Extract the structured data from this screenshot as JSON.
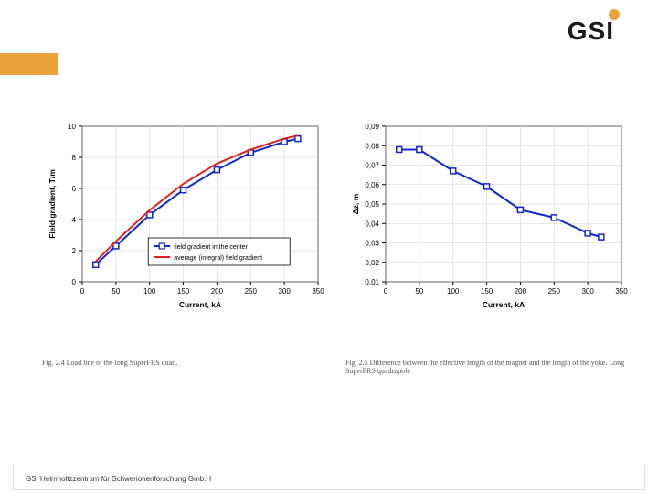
{
  "logo": {
    "text": "GSI",
    "dot_color": "#e8a33d"
  },
  "orange_bar_color": "#e8a33d",
  "footer": "GSI Helmholtzzentrum für Schwerionenforschung Gmb.H",
  "chart_left": {
    "type": "line",
    "xlabel": "Current, kA",
    "ylabel": "Field gradient, T/m",
    "xlim": [
      0,
      350
    ],
    "ylim": [
      0,
      10
    ],
    "xticks": [
      0,
      50,
      100,
      150,
      200,
      250,
      300,
      350
    ],
    "yticks": [
      0,
      2,
      4,
      6,
      8,
      10
    ],
    "background_color": "#ffffff",
    "grid_color": "#cccccc",
    "axis_color": "#000000",
    "series": [
      {
        "name": "field gradient in the center",
        "color": "#1028c8",
        "marker": "square-open",
        "linewidth": 2,
        "data": [
          {
            "x": 20,
            "y": 1.1
          },
          {
            "x": 50,
            "y": 2.3
          },
          {
            "x": 100,
            "y": 4.3
          },
          {
            "x": 150,
            "y": 5.9
          },
          {
            "x": 200,
            "y": 7.2
          },
          {
            "x": 250,
            "y": 8.3
          },
          {
            "x": 300,
            "y": 9.0
          },
          {
            "x": 320,
            "y": 9.2
          }
        ]
      },
      {
        "name": "average (integral) field gradient",
        "color": "#e02020",
        "marker": "none",
        "linewidth": 2,
        "data": [
          {
            "x": 20,
            "y": 1.3
          },
          {
            "x": 50,
            "y": 2.6
          },
          {
            "x": 100,
            "y": 4.6
          },
          {
            "x": 150,
            "y": 6.3
          },
          {
            "x": 200,
            "y": 7.6
          },
          {
            "x": 250,
            "y": 8.5
          },
          {
            "x": 300,
            "y": 9.2
          },
          {
            "x": 320,
            "y": 9.4
          }
        ]
      }
    ],
    "legend": {
      "position": "lower-center",
      "border_color": "#000000",
      "items": [
        {
          "label": "field gradient in the center",
          "color": "#1028c8",
          "marker": "square-open"
        },
        {
          "label": "average (integral) field gradient",
          "color": "#e02020",
          "marker": "none"
        }
      ]
    },
    "caption": "Fig. 2.4 Load line of the long SuperFRS quad."
  },
  "chart_right": {
    "type": "line",
    "xlabel": "Current, kA",
    "ylabel": "Δz, m",
    "xlim": [
      0,
      350
    ],
    "ylim": [
      0.01,
      0.09
    ],
    "xticks": [
      0,
      50,
      100,
      150,
      200,
      250,
      300,
      350
    ],
    "yticks": [
      0.01,
      0.02,
      0.03,
      0.04,
      0.05,
      0.06,
      0.07,
      0.08,
      0.09
    ],
    "ytick_labels": [
      "0,01",
      "0,02",
      "0,03",
      "0,04",
      "0,05",
      "0,06",
      "0,07",
      "0,08",
      "0,09"
    ],
    "background_color": "#ffffff",
    "grid_color": "#cccccc",
    "axis_color": "#000000",
    "series": [
      {
        "name": "dz",
        "color": "#1028c8",
        "marker": "square-open",
        "linewidth": 2,
        "data": [
          {
            "x": 20,
            "y": 0.078
          },
          {
            "x": 50,
            "y": 0.078
          },
          {
            "x": 100,
            "y": 0.067
          },
          {
            "x": 150,
            "y": 0.059
          },
          {
            "x": 200,
            "y": 0.047
          },
          {
            "x": 250,
            "y": 0.043
          },
          {
            "x": 300,
            "y": 0.035
          },
          {
            "x": 320,
            "y": 0.033
          }
        ]
      }
    ],
    "caption": "Fig. 2.5 Difference between the effective length of the magnet and the length of the yoke. Long SuperFRS quadrupole"
  }
}
